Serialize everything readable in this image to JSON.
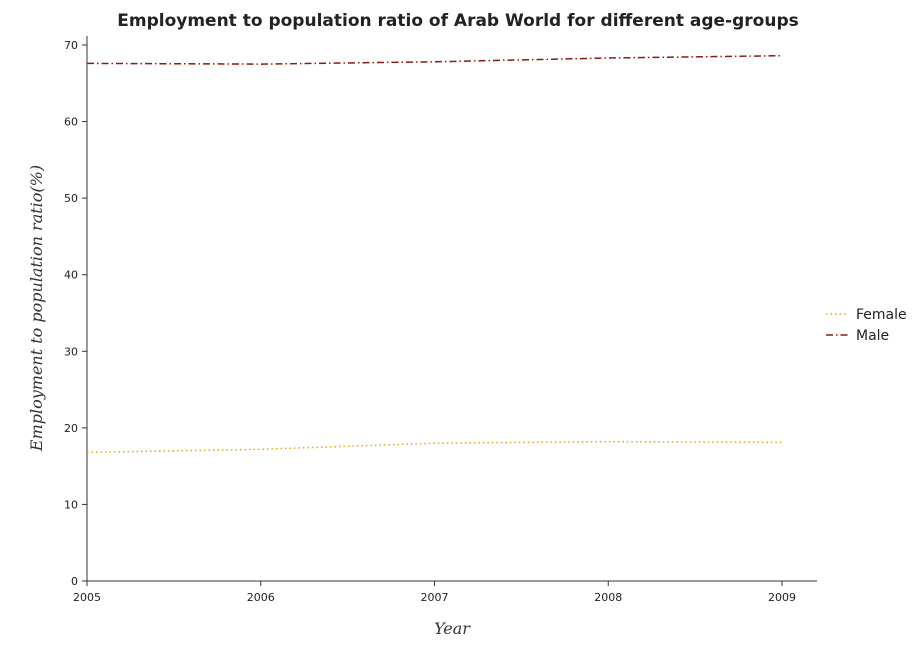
{
  "chart_data": {
    "type": "line",
    "title": "Employment to population ratio of Arab World for different age-groups",
    "xlabel": "Year",
    "ylabel": "Employment to population ratio(%)",
    "categories": [
      "2005",
      "2006",
      "2007",
      "2008",
      "2009"
    ],
    "ylim": [
      0,
      70
    ],
    "yticks": [
      0,
      10,
      20,
      30,
      40,
      50,
      60,
      70
    ],
    "grid": false,
    "legend_position": "right",
    "series": [
      {
        "name": "Female",
        "color": "#e6a21b",
        "style": "dotted",
        "values": [
          16.8,
          17.2,
          18.0,
          18.2,
          18.1
        ]
      },
      {
        "name": "Male",
        "color": "#8b1a10",
        "style": "dash-dot",
        "values": [
          67.6,
          67.5,
          67.8,
          68.3,
          68.6
        ]
      }
    ]
  }
}
